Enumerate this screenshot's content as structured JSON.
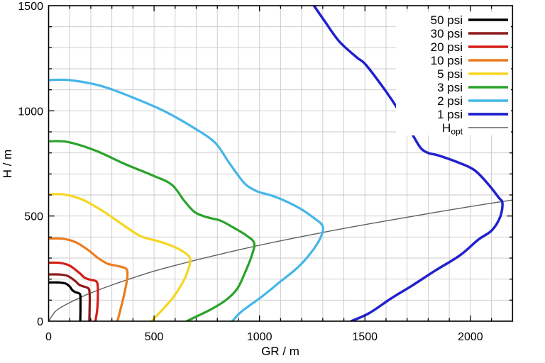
{
  "figure": {
    "background": "#ffffff",
    "border_color": "#000000",
    "grid_color": "#c9c9c9"
  },
  "chart_data": {
    "type": "line",
    "title": "",
    "xlabel": "GR / m",
    "ylabel": "H / m",
    "xlim": [
      0,
      2200
    ],
    "ylim": [
      0,
      1500
    ],
    "x_major_ticks": [
      0,
      500,
      1000,
      1500,
      2000
    ],
    "y_major_ticks": [
      0,
      500,
      1000,
      1500
    ],
    "minor_tick_step": 100,
    "grid": {
      "show": true,
      "step": 100,
      "color": "#c9c9c9"
    },
    "legend": {
      "position": "top-right",
      "background": "#ffffff"
    },
    "series": [
      {
        "id": "50psi",
        "label": "50 psi",
        "color": "#000000",
        "width": 3.2,
        "points": [
          [
            0,
            184
          ],
          [
            45,
            184
          ],
          [
            80,
            179
          ],
          [
            100,
            165
          ],
          [
            112,
            148
          ],
          [
            125,
            139
          ],
          [
            140,
            134
          ],
          [
            149,
            128
          ],
          [
            151,
            110
          ],
          [
            151,
            50
          ],
          [
            150,
            0
          ]
        ]
      },
      {
        "id": "30psi",
        "label": "30 psi",
        "color": "#8f1a1a",
        "width": 3.2,
        "points": [
          [
            0,
            222
          ],
          [
            50,
            222
          ],
          [
            90,
            215
          ],
          [
            125,
            192
          ],
          [
            145,
            173
          ],
          [
            163,
            166
          ],
          [
            181,
            160
          ],
          [
            192,
            150
          ],
          [
            195,
            110
          ],
          [
            194,
            50
          ],
          [
            193,
            0
          ]
        ]
      },
      {
        "id": "20psi",
        "label": "20 psi",
        "color": "#d41d16",
        "width": 3.2,
        "points": [
          [
            0,
            278
          ],
          [
            55,
            277
          ],
          [
            100,
            264
          ],
          [
            145,
            230
          ],
          [
            172,
            206
          ],
          [
            198,
            197
          ],
          [
            220,
            192
          ],
          [
            231,
            181
          ],
          [
            234,
            140
          ],
          [
            231,
            60
          ],
          [
            222,
            0
          ]
        ]
      },
      {
        "id": "10psi",
        "label": "10 psi",
        "color": "#ec7c1e",
        "width": 3.2,
        "points": [
          [
            0,
            393
          ],
          [
            65,
            392
          ],
          [
            125,
            377
          ],
          [
            185,
            340
          ],
          [
            235,
            300
          ],
          [
            280,
            273
          ],
          [
            325,
            263
          ],
          [
            358,
            254
          ],
          [
            372,
            242
          ],
          [
            373,
            205
          ],
          [
            360,
            135
          ],
          [
            342,
            60
          ],
          [
            326,
            0
          ]
        ]
      },
      {
        "id": "5psi",
        "label": "5 psi",
        "color": "#f5d622",
        "width": 3.2,
        "points": [
          [
            0,
            603
          ],
          [
            75,
            602
          ],
          [
            160,
            578
          ],
          [
            255,
            525
          ],
          [
            345,
            463
          ],
          [
            420,
            413
          ],
          [
            458,
            396
          ],
          [
            530,
            377
          ],
          [
            598,
            352
          ],
          [
            648,
            324
          ],
          [
            671,
            298
          ],
          [
            666,
            258
          ],
          [
            640,
            192
          ],
          [
            592,
            115
          ],
          [
            540,
            55
          ],
          [
            488,
            0
          ]
        ]
      },
      {
        "id": "3psi",
        "label": "3 psi",
        "color": "#2aa32a",
        "width": 3.2,
        "points": [
          [
            0,
            855
          ],
          [
            90,
            852
          ],
          [
            220,
            812
          ],
          [
            360,
            748
          ],
          [
            500,
            690
          ],
          [
            585,
            648
          ],
          [
            645,
            570
          ],
          [
            695,
            517
          ],
          [
            755,
            493
          ],
          [
            815,
            478
          ],
          [
            885,
            440
          ],
          [
            940,
            406
          ],
          [
            975,
            370
          ],
          [
            962,
            308
          ],
          [
            930,
            228
          ],
          [
            893,
            152
          ],
          [
            838,
            98
          ],
          [
            768,
            55
          ],
          [
            700,
            22
          ],
          [
            655,
            0
          ]
        ]
      },
      {
        "id": "2psi",
        "label": "2 psi",
        "color": "#45b6e8",
        "width": 3.2,
        "points": [
          [
            0,
            1146
          ],
          [
            100,
            1146
          ],
          [
            250,
            1118
          ],
          [
            400,
            1063
          ],
          [
            550,
            998
          ],
          [
            700,
            912
          ],
          [
            790,
            848
          ],
          [
            850,
            762
          ],
          [
            905,
            685
          ],
          [
            940,
            645
          ],
          [
            992,
            616
          ],
          [
            1048,
            600
          ],
          [
            1112,
            576
          ],
          [
            1192,
            536
          ],
          [
            1257,
            491
          ],
          [
            1300,
            451
          ],
          [
            1288,
            394
          ],
          [
            1243,
            324
          ],
          [
            1180,
            254
          ],
          [
            1100,
            189
          ],
          [
            1013,
            118
          ],
          [
            915,
            46
          ],
          [
            871,
            0
          ]
        ]
      },
      {
        "id": "1psi",
        "label": "1 psi",
        "color": "#2121cd",
        "width": 3.5,
        "points": [
          [
            1258,
            1500
          ],
          [
            1310,
            1425
          ],
          [
            1378,
            1330
          ],
          [
            1460,
            1255
          ],
          [
            1505,
            1218
          ],
          [
            1600,
            1092
          ],
          [
            1666,
            992
          ],
          [
            1724,
            890
          ],
          [
            1764,
            824
          ],
          [
            1800,
            800
          ],
          [
            1848,
            788
          ],
          [
            1936,
            757
          ],
          [
            2018,
            719
          ],
          [
            2084,
            652
          ],
          [
            2134,
            588
          ],
          [
            2152,
            562
          ],
          [
            2142,
            498
          ],
          [
            2102,
            432
          ],
          [
            2038,
            388
          ],
          [
            1952,
            314
          ],
          [
            1836,
            242
          ],
          [
            1722,
            168
          ],
          [
            1624,
            108
          ],
          [
            1520,
            38
          ],
          [
            1435,
            0
          ]
        ]
      },
      {
        "id": "hopt",
        "label": "H",
        "label_sub": "opt",
        "color": "#606060",
        "width": 1.4,
        "points": [
          [
            0,
            0
          ],
          [
            30,
            44
          ],
          [
            60,
            66
          ],
          [
            100,
            88
          ],
          [
            150,
            112
          ],
          [
            200,
            134
          ],
          [
            300,
            172
          ],
          [
            400,
            206
          ],
          [
            500,
            238
          ],
          [
            650,
            278
          ],
          [
            800,
            315
          ],
          [
            950,
            350
          ],
          [
            1100,
            382
          ],
          [
            1250,
            412
          ],
          [
            1400,
            441
          ],
          [
            1550,
            468
          ],
          [
            1700,
            494
          ],
          [
            1850,
            520
          ],
          [
            2000,
            545
          ],
          [
            2100,
            561
          ],
          [
            2200,
            576
          ]
        ]
      }
    ]
  }
}
